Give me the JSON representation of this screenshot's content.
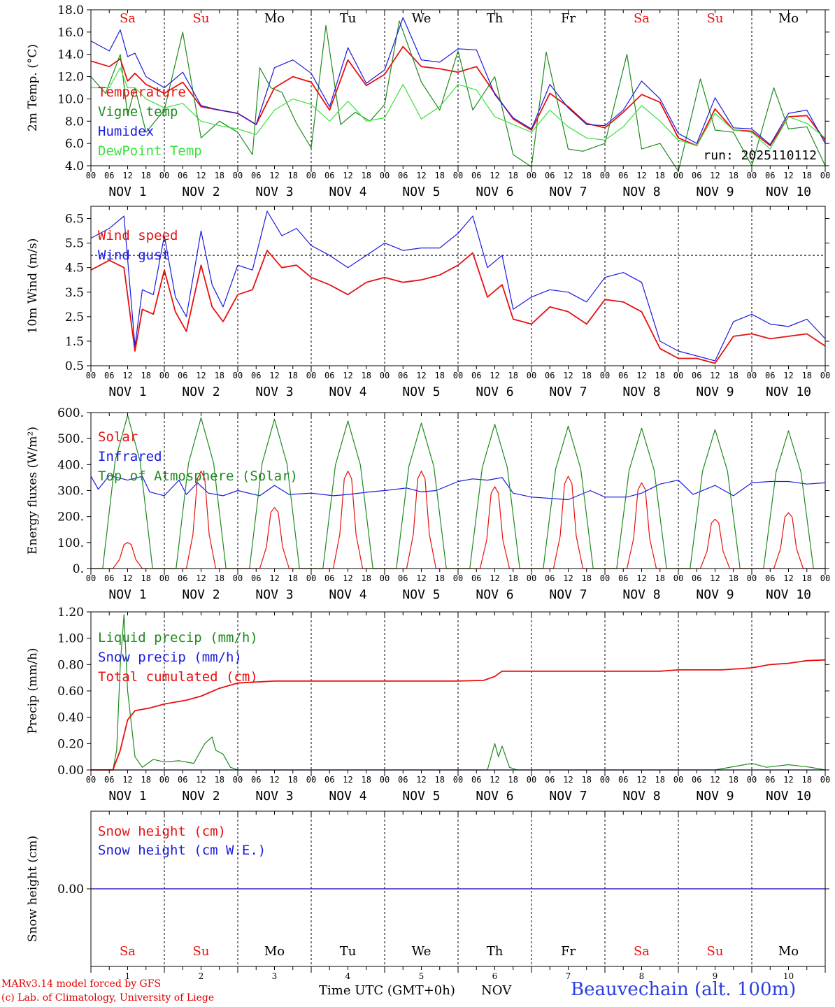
{
  "days": [
    "Sa",
    "Su",
    "Mo",
    "Tu",
    "We",
    "Th",
    "Fr",
    "Sa",
    "Su",
    "Mo"
  ],
  "weekend_days": [
    0,
    1,
    7,
    8
  ],
  "date_labels": [
    "NOV  1",
    "NOV  2",
    "NOV  3",
    "NOV  4",
    "NOV  5",
    "NOV  6",
    "NOV  7",
    "NOV  8",
    "NOV  9",
    "NOV 10"
  ],
  "day_numbers": [
    "1",
    "2",
    "3",
    "4",
    "5",
    "6",
    "7",
    "8",
    "9",
    "10"
  ],
  "hour_ticks": [
    "00",
    "06",
    "12",
    "18"
  ],
  "hour_end": "00",
  "run_label": "run: 2025110112",
  "footer": {
    "credit1": "MARv3.14 model forced by GFS",
    "credit2": "(c) Lab. of Climatology, University of Liege",
    "x_title": "Time UTC (GMT+0h)",
    "x_month": "NOV",
    "station": "Beauvechain (alt. 100m)"
  },
  "colors": {
    "red": "#e81010",
    "green": "#1e8a1e",
    "blue": "#1a1ae0",
    "light_green": "#3ce03c",
    "black": "#000000"
  },
  "chart_data": [
    {
      "type": "line",
      "ylabel": "2m Temp. (°C)",
      "x_unit": "days since NOV 1 00 UTC",
      "xlim": [
        0,
        10
      ],
      "ylim": [
        4.0,
        18.0
      ],
      "yticks": [
        "4.0",
        "6.0",
        "8.0",
        "10.0",
        "12.0",
        "14.0",
        "16.0",
        "18.0"
      ],
      "series": [
        {
          "name": "Temperature",
          "color": "red",
          "x": [
            0,
            0.25,
            0.4,
            0.5,
            0.6,
            0.75,
            1.0,
            1.25,
            1.5,
            1.75,
            2.0,
            2.25,
            2.5,
            2.75,
            3.0,
            3.25,
            3.5,
            3.75,
            4.0,
            4.25,
            4.5,
            4.75,
            5.0,
            5.25,
            5.5,
            5.75,
            6.0,
            6.25,
            6.5,
            6.75,
            7.0,
            7.25,
            7.5,
            7.75,
            8.0,
            8.25,
            8.5,
            8.75,
            9.0,
            9.25,
            9.5,
            9.75,
            10.0
          ],
          "y": [
            13.4,
            12.9,
            13.6,
            11.6,
            12.3,
            11.3,
            10.5,
            11.5,
            9.3,
            9.0,
            8.7,
            7.7,
            11.0,
            12.0,
            11.5,
            9.0,
            13.5,
            11.2,
            12.2,
            14.7,
            12.9,
            12.7,
            12.4,
            12.9,
            10.5,
            8.2,
            7.2,
            10.5,
            9.3,
            7.8,
            7.4,
            8.8,
            10.4,
            9.7,
            6.5,
            5.8,
            9.1,
            7.2,
            7.1,
            5.8,
            8.4,
            8.5,
            6.3
          ]
        },
        {
          "name": "Vigne temp",
          "color": "green",
          "x": [
            0,
            0.2,
            0.4,
            0.5,
            0.6,
            0.75,
            1.0,
            1.25,
            1.5,
            1.75,
            2.0,
            2.2,
            2.3,
            2.45,
            2.6,
            2.8,
            3.0,
            3.2,
            3.4,
            3.6,
            3.8,
            4.0,
            4.2,
            4.5,
            4.75,
            5.0,
            5.2,
            5.5,
            5.75,
            6.0,
            6.2,
            6.5,
            6.7,
            7.0,
            7.3,
            7.5,
            7.75,
            8.0,
            8.3,
            8.5,
            8.75,
            9.0,
            9.3,
            9.5,
            9.75,
            10.0
          ],
          "y": [
            12.0,
            10.5,
            14.0,
            8.5,
            11.0,
            7.0,
            9.0,
            16.0,
            6.5,
            8.0,
            7.0,
            5.0,
            12.8,
            11.0,
            10.6,
            7.8,
            5.6,
            16.6,
            7.7,
            8.8,
            8.0,
            9.5,
            17.0,
            11.5,
            9.0,
            14.3,
            9.0,
            12.0,
            5.0,
            3.9,
            14.2,
            5.5,
            5.3,
            6.0,
            14.0,
            5.5,
            6.0,
            3.5,
            11.8,
            7.2,
            7.0,
            4.0,
            11.0,
            7.3,
            7.5,
            4.0
          ]
        },
        {
          "name": "Humidex",
          "color": "blue",
          "x": [
            0,
            0.25,
            0.4,
            0.5,
            0.6,
            0.75,
            1.0,
            1.25,
            1.5,
            1.75,
            2.0,
            2.25,
            2.5,
            2.75,
            3.0,
            3.25,
            3.5,
            3.75,
            4.0,
            4.25,
            4.5,
            4.75,
            5.0,
            5.25,
            5.5,
            5.75,
            6.0,
            6.25,
            6.5,
            6.75,
            7.0,
            7.25,
            7.5,
            7.75,
            8.0,
            8.25,
            8.5,
            8.75,
            9.0,
            9.25,
            9.5,
            9.75,
            10.0
          ],
          "y": [
            15.2,
            14.3,
            16.2,
            13.8,
            14.1,
            12.0,
            11.0,
            12.4,
            9.4,
            9.0,
            8.7,
            7.7,
            12.8,
            13.5,
            12.3,
            9.3,
            14.6,
            11.4,
            12.6,
            17.3,
            13.5,
            13.3,
            14.5,
            14.4,
            10.4,
            8.3,
            7.3,
            11.3,
            9.2,
            7.7,
            7.6,
            9.0,
            11.6,
            10.0,
            6.9,
            6.0,
            10.1,
            7.4,
            7.3,
            5.9,
            8.7,
            9.0,
            6.0
          ]
        },
        {
          "name": "DewPoint Temp",
          "color": "light_green",
          "x": [
            0,
            0.25,
            0.4,
            0.5,
            0.6,
            0.75,
            1.0,
            1.25,
            1.5,
            1.75,
            2.0,
            2.25,
            2.5,
            2.75,
            3.0,
            3.25,
            3.5,
            3.75,
            4.0,
            4.25,
            4.5,
            4.75,
            5.0,
            5.25,
            5.5,
            5.75,
            6.0,
            6.25,
            6.5,
            6.75,
            7.0,
            7.25,
            7.5,
            7.75,
            8.0,
            8.25,
            8.5,
            8.75,
            9.0,
            9.25,
            9.5,
            9.75,
            10.0
          ],
          "y": [
            11.0,
            11.0,
            12.8,
            11.0,
            11.0,
            10.0,
            9.2,
            9.6,
            8.0,
            7.6,
            7.3,
            6.8,
            9.0,
            10.0,
            9.5,
            8.0,
            9.8,
            8.0,
            8.3,
            11.3,
            8.2,
            9.3,
            11.3,
            10.8,
            8.4,
            7.7,
            7.0,
            9.0,
            7.5,
            6.5,
            6.3,
            7.5,
            9.4,
            8.0,
            6.3,
            5.8,
            8.7,
            7.2,
            7.0,
            5.5,
            8.4,
            7.8,
            6.5
          ]
        }
      ]
    },
    {
      "type": "line",
      "ylabel": "10m Wind (m/s)",
      "x_unit": "days since NOV 1 00 UTC",
      "xlim": [
        0,
        10
      ],
      "ylim": [
        0.5,
        7.0
      ],
      "yticks": [
        "0.5",
        "1.5",
        "2.5",
        "3.5",
        "4.5",
        "5.5",
        "6.5"
      ],
      "reference_line": 5.0,
      "series": [
        {
          "name": "Wind speed",
          "color": "red",
          "x": [
            0,
            0.25,
            0.45,
            0.6,
            0.7,
            0.85,
            1.0,
            1.15,
            1.3,
            1.5,
            1.65,
            1.8,
            2.0,
            2.2,
            2.4,
            2.6,
            2.8,
            3.0,
            3.25,
            3.5,
            3.75,
            4.0,
            4.25,
            4.5,
            4.75,
            5.0,
            5.2,
            5.4,
            5.6,
            5.75,
            6.0,
            6.25,
            6.5,
            6.75,
            7.0,
            7.25,
            7.5,
            7.75,
            8.0,
            8.25,
            8.5,
            8.75,
            9.0,
            9.25,
            9.5,
            9.75,
            10.0
          ],
          "y": [
            4.4,
            4.8,
            4.5,
            1.1,
            2.8,
            2.6,
            4.4,
            2.7,
            1.9,
            4.6,
            2.9,
            2.3,
            3.4,
            3.6,
            5.2,
            4.5,
            4.6,
            4.1,
            3.8,
            3.4,
            3.9,
            4.1,
            3.9,
            4.0,
            4.2,
            4.6,
            5.1,
            3.3,
            3.8,
            2.4,
            2.2,
            2.9,
            2.7,
            2.2,
            3.2,
            3.1,
            2.7,
            1.2,
            0.8,
            0.8,
            0.6,
            1.7,
            1.8,
            1.6,
            1.7,
            1.8,
            1.3
          ]
        },
        {
          "name": "Wind gust",
          "color": "blue",
          "x": [
            0,
            0.25,
            0.45,
            0.6,
            0.7,
            0.85,
            1.0,
            1.15,
            1.3,
            1.5,
            1.65,
            1.8,
            2.0,
            2.2,
            2.4,
            2.6,
            2.8,
            3.0,
            3.25,
            3.5,
            3.75,
            4.0,
            4.25,
            4.5,
            4.75,
            5.0,
            5.2,
            5.4,
            5.6,
            5.75,
            6.0,
            6.25,
            6.5,
            6.75,
            7.0,
            7.25,
            7.5,
            7.75,
            8.0,
            8.25,
            8.5,
            8.75,
            9.0,
            9.25,
            9.5,
            9.75,
            10.0
          ],
          "y": [
            5.7,
            6.1,
            6.6,
            1.3,
            3.6,
            3.4,
            5.8,
            3.3,
            2.5,
            6.0,
            3.8,
            2.9,
            4.6,
            4.4,
            6.8,
            5.8,
            6.1,
            5.4,
            5.0,
            4.5,
            5.0,
            5.5,
            5.2,
            5.3,
            5.3,
            5.9,
            6.6,
            4.5,
            5.0,
            2.8,
            3.3,
            3.6,
            3.5,
            3.1,
            4.1,
            4.3,
            3.9,
            1.5,
            1.1,
            0.9,
            0.7,
            2.3,
            2.6,
            2.2,
            2.1,
            2.4,
            1.6
          ]
        }
      ]
    },
    {
      "type": "line",
      "ylabel": "Energy fluxes (W/m²)",
      "x_unit": "days since NOV 1 00 UTC",
      "xlim": [
        0,
        10
      ],
      "ylim": [
        0,
        600
      ],
      "yticks": [
        "0.",
        "100.",
        "200.",
        "300.",
        "400.",
        "500.",
        "600."
      ],
      "day_peaks": {
        "solar": [
          100,
          375,
          235,
          375,
          375,
          315,
          355,
          330,
          190,
          215
        ],
        "toa": [
          590,
          580,
          575,
          568,
          560,
          555,
          548,
          540,
          535,
          530
        ]
      },
      "series": [
        {
          "name": "Solar",
          "color": "red",
          "from": "day_peaks.solar"
        },
        {
          "name": "Infrared",
          "color": "blue",
          "x": [
            0,
            0.1,
            0.25,
            0.5,
            0.7,
            0.8,
            1.0,
            1.2,
            1.3,
            1.45,
            1.6,
            1.8,
            2.0,
            2.3,
            2.5,
            2.7,
            3.0,
            3.3,
            3.5,
            3.8,
            4.0,
            4.3,
            4.5,
            4.7,
            5.0,
            5.2,
            5.4,
            5.6,
            5.75,
            6.0,
            6.25,
            6.5,
            6.8,
            7.0,
            7.3,
            7.5,
            7.75,
            8.0,
            8.2,
            8.5,
            8.75,
            9.0,
            9.25,
            9.5,
            9.75,
            10.0
          ],
          "y": [
            355,
            305,
            358,
            340,
            355,
            295,
            280,
            340,
            285,
            330,
            290,
            280,
            300,
            280,
            320,
            285,
            290,
            280,
            285,
            295,
            300,
            310,
            295,
            300,
            335,
            345,
            340,
            350,
            290,
            275,
            270,
            265,
            300,
            275,
            275,
            290,
            325,
            340,
            285,
            320,
            280,
            330,
            335,
            335,
            325,
            330
          ]
        },
        {
          "name": "Top of Atmosphere (Solar)",
          "color": "green",
          "from": "day_peaks.toa"
        }
      ]
    },
    {
      "type": "line",
      "ylabel": "Precip (mm/h)",
      "x_unit": "days since NOV 1 00 UTC",
      "xlim": [
        0,
        10
      ],
      "ylim": [
        0,
        1.2
      ],
      "yticks": [
        "0.00",
        "0.20",
        "0.40",
        "0.60",
        "0.80",
        "1.00",
        "1.20"
      ],
      "series": [
        {
          "name": "Liquid precip (mm/h)",
          "color": "green",
          "x": [
            0,
            0.3,
            0.35,
            0.4,
            0.45,
            0.5,
            0.55,
            0.6,
            0.7,
            0.85,
            1.0,
            1.2,
            1.4,
            1.55,
            1.65,
            1.7,
            1.8,
            1.9,
            2.0,
            2.5,
            3.0,
            5.4,
            5.5,
            5.55,
            5.6,
            5.65,
            5.7,
            5.8,
            6.0,
            8.5,
            9.0,
            9.2,
            9.5,
            9.8,
            10.0
          ],
          "y": [
            0,
            0,
            0.15,
            0.8,
            1.18,
            0.6,
            0.35,
            0.1,
            0.02,
            0.08,
            0.06,
            0.07,
            0.05,
            0.2,
            0.25,
            0.15,
            0.12,
            0.02,
            0,
            0,
            0,
            0,
            0.2,
            0.1,
            0.18,
            0.1,
            0.02,
            0,
            0,
            0,
            0.05,
            0.02,
            0.04,
            0.02,
            0
          ]
        },
        {
          "name": "Snow precip (mm/h)",
          "color": "blue",
          "x": [
            0,
            10
          ],
          "y": [
            0,
            0
          ]
        },
        {
          "name": "Total cumulated (cm)",
          "color": "red",
          "x": [
            0,
            0.3,
            0.4,
            0.5,
            0.6,
            0.8,
            1.0,
            1.3,
            1.5,
            1.75,
            2.0,
            2.5,
            3.0,
            4.0,
            5.0,
            5.35,
            5.5,
            5.6,
            6.0,
            7.0,
            7.75,
            8.0,
            8.6,
            9.0,
            9.25,
            9.5,
            9.75,
            10.0
          ],
          "y": [
            0,
            0,
            0.15,
            0.38,
            0.45,
            0.47,
            0.5,
            0.53,
            0.56,
            0.62,
            0.66,
            0.675,
            0.675,
            0.675,
            0.675,
            0.68,
            0.71,
            0.75,
            0.75,
            0.75,
            0.75,
            0.76,
            0.76,
            0.775,
            0.8,
            0.81,
            0.83,
            0.835
          ]
        }
      ]
    },
    {
      "type": "line",
      "ylabel": "Snow height (cm)",
      "x_unit": "days since NOV 1 00 UTC",
      "xlim": [
        0,
        10
      ],
      "yticks": [
        "0.00"
      ],
      "series": [
        {
          "name": "Snow height (cm)",
          "color": "red",
          "x": [
            0,
            10
          ],
          "y": [
            0,
            0
          ]
        },
        {
          "name": "Snow height (cm W.E.)",
          "color": "blue",
          "x": [
            0,
            10
          ],
          "y": [
            0,
            0
          ]
        }
      ]
    }
  ]
}
